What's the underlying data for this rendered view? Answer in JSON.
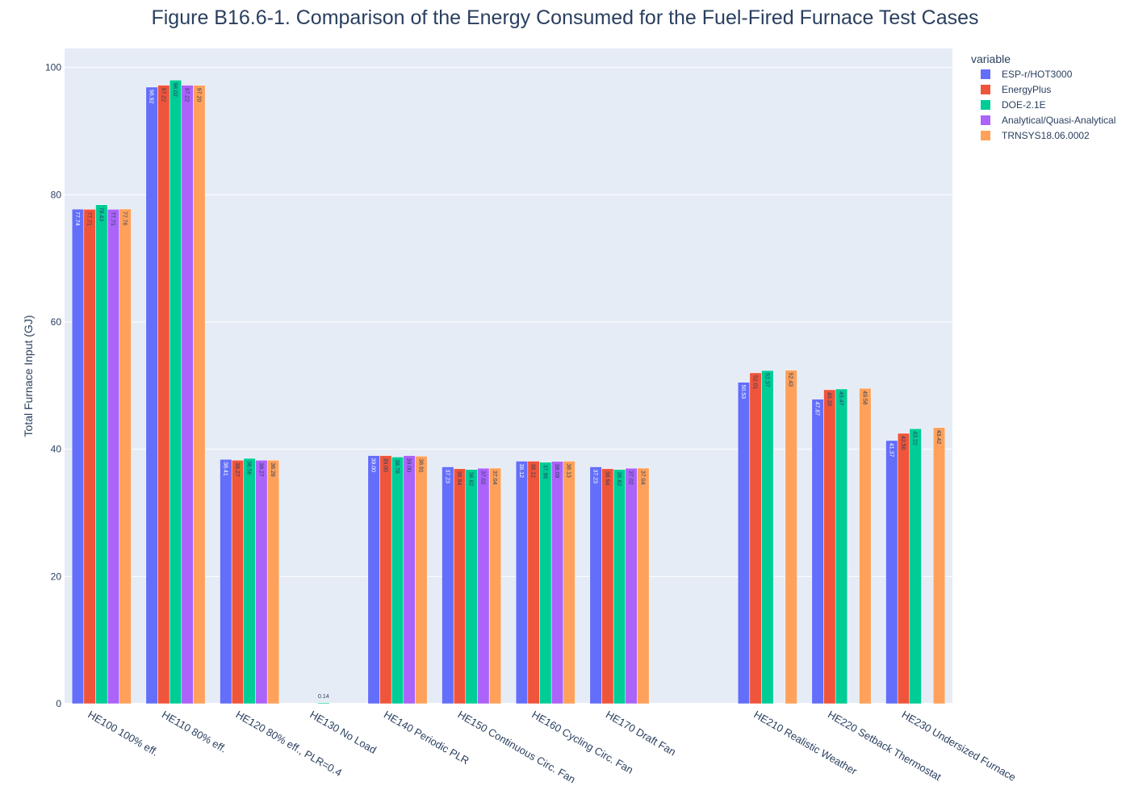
{
  "chart_data": {
    "type": "bar",
    "title": "Figure B16.6-1. Comparison of the Energy Consumed for the Fuel-Fired Furnace Test Cases",
    "xlabel": "",
    "ylabel": "Total Furnace Input (GJ)",
    "ylim": [
      0,
      103
    ],
    "yticks": [
      0,
      20,
      40,
      60,
      80,
      100
    ],
    "grid": true,
    "legend_title": "variable",
    "legend_position": "top-right",
    "categories": [
      "HE100 100% eff.",
      "HE110 80% eff.",
      "HE120 80% eff., PLR=0.4",
      "HE130 No Load",
      "HE140 Periodic PLR",
      "HE150 Continuous Circ. Fan",
      "HE160 Cycling Circ. Fan",
      "HE170 Draft Fan",
      "",
      "HE210 Realistic Weather",
      "HE220 Setback Thermostat",
      "HE230 Undersized Furnace"
    ],
    "series": [
      {
        "name": "ESP-r/HOT3000",
        "color": "#636efa",
        "values": [
          77.74,
          96.92,
          38.41,
          null,
          39.0,
          37.23,
          38.12,
          37.23,
          null,
          50.53,
          47.87,
          41.37
        ]
      },
      {
        "name": "EnergyPlus",
        "color": "#ef553b",
        "values": [
          77.71,
          97.22,
          38.27,
          null,
          39.0,
          36.94,
          38.12,
          36.94,
          null,
          52.01,
          49.35,
          42.5
        ]
      },
      {
        "name": "DOE-2.1E",
        "color": "#00cc96",
        "values": [
          78.43,
          98.02,
          38.56,
          0.14,
          38.78,
          36.82,
          37.96,
          36.82,
          null,
          52.37,
          49.47,
          43.22
        ]
      },
      {
        "name": "Analytical/Quasi-Analytical",
        "color": "#ab63fa",
        "values": [
          77.71,
          97.22,
          38.27,
          null,
          39.0,
          37.02,
          38.09,
          37.02,
          null,
          null,
          null,
          null
        ]
      },
      {
        "name": "TRNSYS18.06.0002",
        "color": "#ffa15a",
        "values": [
          77.76,
          97.2,
          38.28,
          null,
          38.91,
          37.04,
          38.13,
          37.04,
          null,
          52.43,
          49.58,
          43.42
        ]
      }
    ]
  }
}
